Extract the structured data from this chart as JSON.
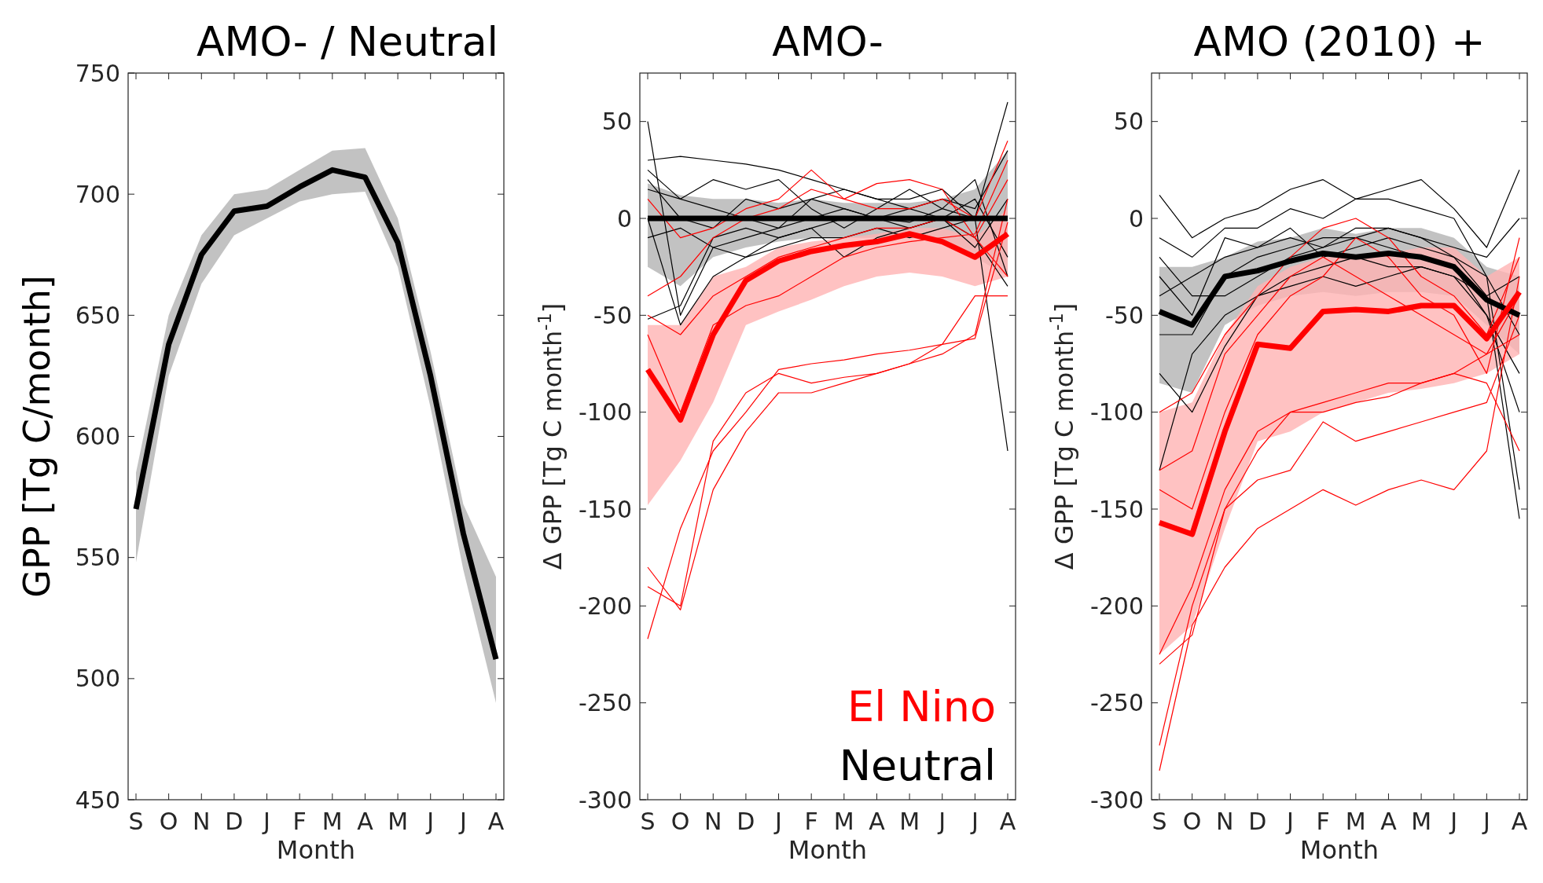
{
  "chart_data": [
    {
      "type": "line",
      "title": "AMO- / Neutral",
      "xlabel": "Month",
      "ylabel": "GPP [Tg C/month]",
      "categories": [
        "S",
        "O",
        "N",
        "D",
        "J",
        "F",
        "M",
        "A",
        "M",
        "J",
        "J",
        "A"
      ],
      "ylim": [
        450,
        750
      ],
      "yticks": [
        450,
        500,
        550,
        600,
        650,
        700,
        750
      ],
      "grid": false,
      "legend": false,
      "series": [
        {
          "color": "#000000",
          "values": [
            570,
            638,
            675,
            693,
            695,
            703,
            710,
            707,
            680,
            625,
            560,
            508
          ],
          "lower": [
            548,
            625,
            663,
            683,
            690,
            697,
            700,
            701,
            670,
            612,
            545,
            490
          ],
          "upper": [
            585,
            650,
            683,
            700,
            702,
            710,
            718,
            719,
            690,
            635,
            572,
            542
          ]
        }
      ]
    },
    {
      "type": "line",
      "title": "AMO-",
      "xlabel": "Month",
      "ylabel": "Δ GPP [Tg C month$^{-1}$]",
      "categories": [
        "S",
        "O",
        "N",
        "D",
        "J",
        "F",
        "M",
        "A",
        "M",
        "J",
        "J",
        "A"
      ],
      "ylim": [
        -300,
        75
      ],
      "yticks": [
        -300,
        -250,
        -200,
        -150,
        -100,
        -50,
        0,
        50
      ],
      "grid": false,
      "legend": "bottom right",
      "series": [
        {
          "color": "#000000",
          "values": [
            50,
            -50,
            -15,
            -10,
            -5,
            0,
            5,
            0,
            -2,
            5,
            0,
            60
          ]
        },
        {
          "color": "#000000",
          "values": [
            30,
            32,
            30,
            28,
            25,
            20,
            15,
            10,
            10,
            15,
            0,
            -120
          ]
        },
        {
          "color": "#000000",
          "values": [
            20,
            0,
            -5,
            10,
            5,
            10,
            15,
            10,
            5,
            0,
            -10,
            -35
          ]
        },
        {
          "color": "#000000",
          "values": [
            -52,
            -45,
            -10,
            -5,
            -10,
            -5,
            0,
            0,
            -5,
            0,
            10,
            -20
          ]
        },
        {
          "color": "#000000",
          "values": [
            25,
            10,
            5,
            0,
            -5,
            10,
            5,
            0,
            5,
            10,
            5,
            35
          ]
        },
        {
          "color": "#000000",
          "values": [
            -10,
            -5,
            -15,
            -20,
            -10,
            -5,
            -20,
            -10,
            -5,
            0,
            -15,
            10
          ]
        },
        {
          "color": "#000000",
          "values": [
            15,
            10,
            20,
            15,
            20,
            5,
            -5,
            5,
            15,
            5,
            20,
            -30
          ]
        },
        {
          "color": "#000000",
          "values": [
            0,
            -55,
            -30,
            -20,
            -15,
            -10,
            -10,
            -5,
            -10,
            -5,
            0,
            0
          ]
        },
        {
          "color": "#ff0000",
          "values": [
            -217,
            -160,
            -120,
            -100,
            -78,
            -75,
            -73,
            -70,
            -68,
            -65,
            -62,
            -2
          ]
        },
        {
          "color": "#ff0000",
          "values": [
            -180,
            -202,
            -140,
            -110,
            -90,
            -90,
            -85,
            -80,
            -75,
            -65,
            -40,
            -40
          ]
        },
        {
          "color": "#ff0000",
          "values": [
            -190,
            -200,
            -115,
            -90,
            -80,
            -85,
            -82,
            -80,
            -75,
            -70,
            -60,
            10
          ]
        },
        {
          "color": "#ff0000",
          "values": [
            -50,
            -60,
            -40,
            -30,
            -20,
            -15,
            -10,
            -5,
            -5,
            0,
            -10,
            20
          ]
        },
        {
          "color": "#ff0000",
          "values": [
            -40,
            -30,
            -10,
            0,
            5,
            15,
            10,
            18,
            20,
            15,
            -10,
            -30
          ]
        },
        {
          "color": "#ff0000",
          "values": [
            -60,
            -100,
            -55,
            -45,
            -40,
            -30,
            -20,
            -15,
            -12,
            -10,
            -8,
            30
          ]
        },
        {
          "color": "#ff0000",
          "values": [
            10,
            -10,
            -5,
            5,
            10,
            25,
            10,
            5,
            5,
            10,
            0,
            40
          ]
        },
        {
          "name": "Neutral",
          "color": "#000000",
          "values": [
            0,
            0,
            0,
            0,
            0,
            0,
            0,
            0,
            0,
            0,
            0,
            0
          ],
          "lower": [
            -25,
            -35,
            -20,
            -15,
            -12,
            -10,
            -10,
            -10,
            -10,
            -12,
            -20,
            -30
          ],
          "upper": [
            18,
            12,
            10,
            10,
            8,
            10,
            8,
            8,
            8,
            10,
            15,
            35
          ]
        },
        {
          "name": "El Nino",
          "color": "#ff0000",
          "values": [
            -78,
            -104,
            -60,
            -32,
            -22,
            -17,
            -14,
            -12,
            -8,
            -12,
            -20,
            -8
          ],
          "lower": [
            -148,
            -125,
            -95,
            -55,
            -48,
            -42,
            -35,
            -30,
            -28,
            -30,
            -35,
            -30
          ],
          "upper": [
            -55,
            -55,
            -30,
            -25,
            -15,
            -12,
            -10,
            -8,
            -5,
            -5,
            -10,
            5
          ]
        }
      ]
    },
    {
      "type": "line",
      "title": "AMO (2010) +",
      "xlabel": "Month",
      "ylabel": "Δ GPP [Tg C month$^{-1}$]",
      "categories": [
        "S",
        "O",
        "N",
        "D",
        "J",
        "F",
        "M",
        "A",
        "M",
        "J",
        "J",
        "A"
      ],
      "ylim": [
        -300,
        75
      ],
      "yticks": [
        -300,
        -250,
        -200,
        -150,
        -100,
        -50,
        0,
        50
      ],
      "grid": false,
      "legend": false,
      "series": [
        {
          "color": "#000000",
          "values": [
            12,
            -10,
            0,
            5,
            15,
            20,
            10,
            15,
            20,
            5,
            -15,
            25
          ]
        },
        {
          "color": "#000000",
          "values": [
            -10,
            -20,
            -5,
            -5,
            5,
            0,
            10,
            10,
            5,
            0,
            -30,
            -140
          ]
        },
        {
          "color": "#000000",
          "values": [
            -30,
            -50,
            -10,
            -15,
            -10,
            -15,
            -10,
            -5,
            -10,
            -20,
            -40,
            -155
          ]
        },
        {
          "color": "#000000",
          "values": [
            -60,
            -60,
            -30,
            -20,
            -15,
            -10,
            -10,
            -15,
            -20,
            -25,
            -50,
            -100
          ]
        },
        {
          "color": "#000000",
          "values": [
            -130,
            -70,
            -50,
            -40,
            -30,
            -25,
            -20,
            -25,
            -25,
            -30,
            -40,
            -30
          ]
        },
        {
          "color": "#000000",
          "values": [
            -40,
            -30,
            -20,
            -15,
            -5,
            -20,
            -15,
            -10,
            -15,
            -20,
            -30,
            -60
          ]
        },
        {
          "color": "#000000",
          "values": [
            -20,
            -40,
            -40,
            -30,
            -20,
            -15,
            -5,
            -5,
            -10,
            -15,
            -20,
            0
          ]
        },
        {
          "color": "#000000",
          "values": [
            -80,
            -100,
            -66,
            -40,
            -35,
            -30,
            -35,
            -30,
            -25,
            -30,
            -50,
            -80
          ]
        },
        {
          "color": "#ff0000",
          "values": [
            -285,
            -210,
            -180,
            -160,
            -150,
            -140,
            -148,
            -140,
            -135,
            -140,
            -120,
            -30
          ]
        },
        {
          "color": "#ff0000",
          "values": [
            -272,
            -200,
            -150,
            -135,
            -130,
            -105,
            -115,
            -110,
            -105,
            -100,
            -95,
            -50
          ]
        },
        {
          "color": "#ff0000",
          "values": [
            -230,
            -215,
            -150,
            -120,
            -100,
            -100,
            -95,
            -92,
            -85,
            -80,
            -85,
            -120
          ]
        },
        {
          "color": "#ff0000",
          "values": [
            -225,
            -190,
            -140,
            -110,
            -100,
            -95,
            -90,
            -85,
            -85,
            -80,
            -70,
            -60
          ]
        },
        {
          "color": "#ff0000",
          "values": [
            -100,
            -90,
            -60,
            -40,
            -20,
            -5,
            0,
            -10,
            -30,
            -40,
            -60,
            -20
          ]
        },
        {
          "color": "#ff0000",
          "values": [
            -130,
            -120,
            -70,
            -50,
            -30,
            -20,
            -30,
            -40,
            -50,
            -60,
            -70,
            -40
          ]
        },
        {
          "color": "#ff0000",
          "values": [
            -140,
            -150,
            -100,
            -60,
            -40,
            -30,
            -10,
            -20,
            -40,
            -50,
            -80,
            -10
          ]
        },
        {
          "color": "#000000",
          "values": [
            -48,
            -55,
            -30,
            -27,
            -22,
            -18,
            -20,
            -18,
            -20,
            -25,
            -42,
            -50
          ],
          "lower": [
            -85,
            -90,
            -55,
            -45,
            -40,
            -38,
            -40,
            -38,
            -38,
            -40,
            -55,
            -70
          ],
          "upper": [
            -25,
            -25,
            -20,
            -12,
            -10,
            -5,
            -8,
            -5,
            -5,
            -10,
            -25,
            -30
          ]
        },
        {
          "color": "#ff0000",
          "values": [
            -157,
            -163,
            -110,
            -65,
            -67,
            -48,
            -47,
            -48,
            -45,
            -45,
            -62,
            -38
          ],
          "lower": [
            -225,
            -210,
            -160,
            -115,
            -110,
            -100,
            -95,
            -90,
            -88,
            -85,
            -80,
            -70
          ],
          "upper": [
            -100,
            -95,
            -60,
            -35,
            -25,
            -20,
            -20,
            -18,
            -15,
            -15,
            -30,
            -20
          ]
        }
      ]
    }
  ]
}
